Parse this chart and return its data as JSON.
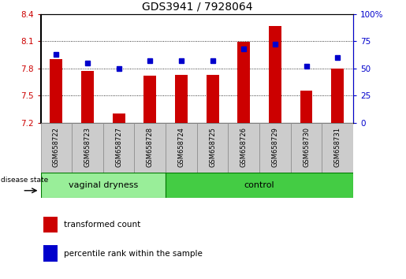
{
  "title": "GDS3941 / 7928064",
  "samples": [
    "GSM658722",
    "GSM658723",
    "GSM658727",
    "GSM658728",
    "GSM658724",
    "GSM658725",
    "GSM658726",
    "GSM658729",
    "GSM658730",
    "GSM658731"
  ],
  "bar_values": [
    7.9,
    7.77,
    7.3,
    7.72,
    7.73,
    7.73,
    8.09,
    8.27,
    7.55,
    7.8
  ],
  "dot_values": [
    63,
    55,
    50,
    57,
    57,
    57,
    68,
    72,
    52,
    60
  ],
  "ylim_left": [
    7.2,
    8.4
  ],
  "ylim_right": [
    0,
    100
  ],
  "yticks_left": [
    7.2,
    7.5,
    7.8,
    8.1,
    8.4
  ],
  "yticks_right": [
    0,
    25,
    50,
    75,
    100
  ],
  "ytick_labels_left": [
    "7.2",
    "7.5",
    "7.8",
    "8.1",
    "8.4"
  ],
  "ytick_labels_right": [
    "0",
    "25",
    "50",
    "75",
    "100%"
  ],
  "bar_color": "#cc0000",
  "dot_color": "#0000cc",
  "group1_label": "vaginal dryness",
  "group2_label": "control",
  "group1_count": 4,
  "group2_count": 6,
  "legend_bar_label": "transformed count",
  "legend_dot_label": "percentile rank within the sample",
  "disease_state_label": "disease state",
  "group1_color": "#99ee99",
  "group2_color": "#44cc44",
  "axis_color_left": "#cc0000",
  "axis_color_right": "#0000cc",
  "title_fontsize": 10,
  "tick_fontsize": 7.5,
  "sample_fontsize": 6,
  "group_fontsize": 8,
  "legend_fontsize": 7.5,
  "bar_width": 0.4
}
